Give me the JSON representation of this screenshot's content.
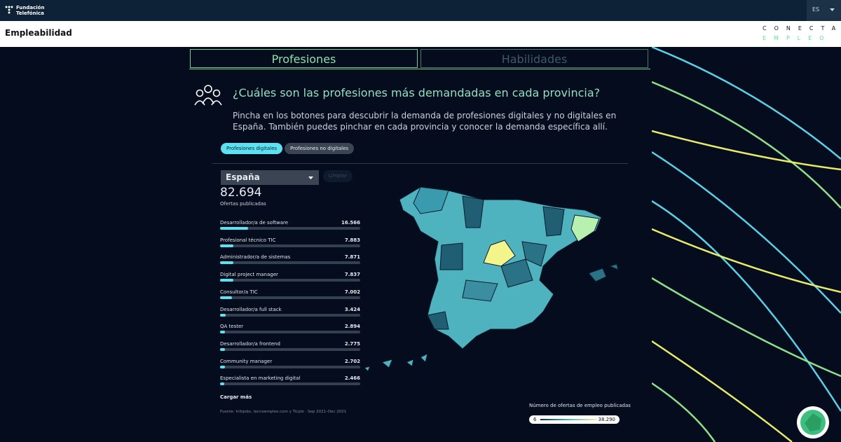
{
  "header": {
    "brand": [
      "Fundación",
      "Telefónica"
    ],
    "language": "ES"
  },
  "navbar": {
    "title": "Empleabilidad",
    "logo_top": "CONECTA",
    "logo_bottom": "EMPLEO"
  },
  "tabs": [
    "Profesiones",
    "Habilidades"
  ],
  "section": {
    "heading": "¿Cuáles son las profesiones más demandadas en cada provincia?",
    "description": "Pincha en los botones para descubrir la demanda de profesiones digitales y no digitales en España. También puedes pinchar en cada provincia y conocer la demanda específica allí."
  },
  "filters": [
    "Profesiones digitales",
    "Profesiones no digitales"
  ],
  "region": "España",
  "clear": "Limpiar",
  "total": {
    "value": 82694,
    "label": "82.694"
  },
  "total_caption": "Ofertas publicadas",
  "professions": [
    {
      "name": "Desarrollador/a de software",
      "value": 16566,
      "label": "16.566"
    },
    {
      "name": "Profesional técnico TIC",
      "value": 7883,
      "label": "7.883"
    },
    {
      "name": "Administrador/a de sistemas",
      "value": 7871,
      "label": "7.871"
    },
    {
      "name": "Digital project manager",
      "value": 7837,
      "label": "7.837"
    },
    {
      "name": "Consultor/a TIC",
      "value": 7002,
      "label": "7.002"
    },
    {
      "name": "Desarrollador/a full stack",
      "value": 3424,
      "label": "3.424"
    },
    {
      "name": "QA tester",
      "value": 2894,
      "label": "2.894"
    },
    {
      "name": "Desarrollador/a frontend",
      "value": 2775,
      "label": "2.775"
    },
    {
      "name": "Community manager",
      "value": 2702,
      "label": "2.702"
    },
    {
      "name": "Especialista en marketing digital",
      "value": 2466,
      "label": "2.466"
    }
  ],
  "load_more": "Cargar más",
  "source": "Fuente: Infojobs, tecnoempleo.com y Ticjob · Sep 2021–Dec 2021",
  "legend": {
    "title": "Número de ofertas de empleo publicadas",
    "min": {
      "value": 6,
      "label": "6"
    },
    "max": {
      "value": 38290,
      "label": "38.290"
    }
  }
}
